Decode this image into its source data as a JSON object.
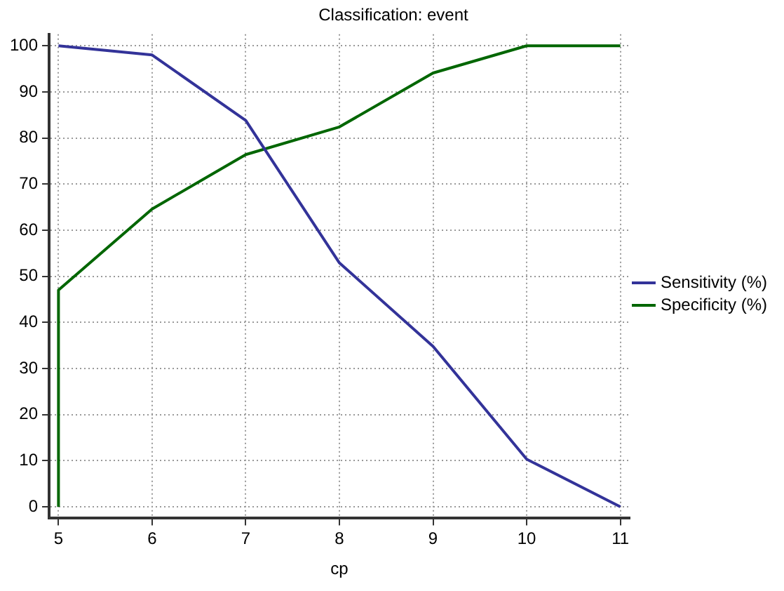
{
  "chart_data": {
    "type": "line",
    "title": "Classification: event",
    "xlabel": "cp",
    "x": [
      5,
      6,
      7,
      8,
      9,
      10,
      11
    ],
    "series": [
      {
        "name": "Sensitivity (%)",
        "color": "#333399",
        "values": [
          100,
          98,
          83.8,
          52.9,
          34.8,
          10.3,
          0
        ]
      },
      {
        "name": "Specificity (%)",
        "color": "#006600",
        "x": [
          5,
          5,
          6,
          7,
          8,
          9,
          10,
          11
        ],
        "values": [
          0,
          47,
          64.6,
          76.4,
          82.4,
          94.1,
          100,
          100
        ]
      }
    ],
    "xlim": [
      4.9,
      11.1
    ],
    "xticks": [
      5,
      6,
      7,
      8,
      9,
      10,
      11
    ],
    "ylim": [
      -2.5,
      102.5
    ],
    "yticks": [
      0,
      10,
      20,
      30,
      40,
      50,
      60,
      70,
      80,
      90,
      100
    ],
    "grid": true,
    "legend": "right",
    "marker": "none",
    "line_style": "solid"
  }
}
